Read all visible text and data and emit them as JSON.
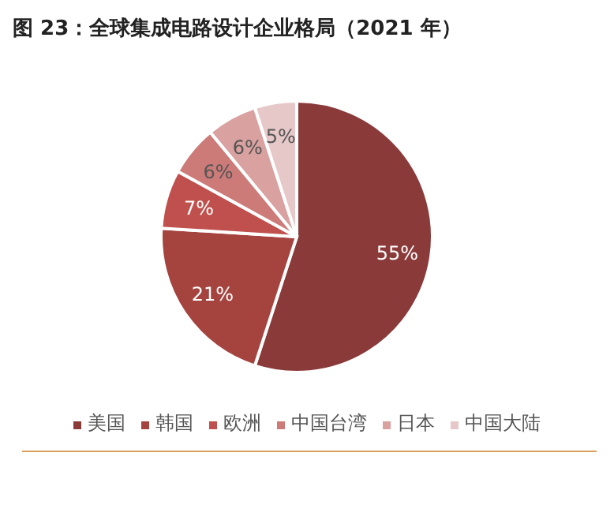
{
  "chart_data": {
    "type": "pie",
    "title": "图 23：全球集成电路设计企业格局（2021 年）",
    "categories": [
      "美国",
      "韩国",
      "欧洲",
      "中国台湾",
      "日本",
      "中国大陆"
    ],
    "values": [
      55,
      21,
      7,
      6,
      6,
      5
    ],
    "value_labels": [
      "55%",
      "21%",
      "7%",
      "6%",
      "6%",
      "5%"
    ],
    "colors": [
      "#8b3a3a",
      "#a5433f",
      "#c0504d",
      "#cd7b79",
      "#d9a1a0",
      "#e6c8c8"
    ],
    "legend": "bottom"
  }
}
